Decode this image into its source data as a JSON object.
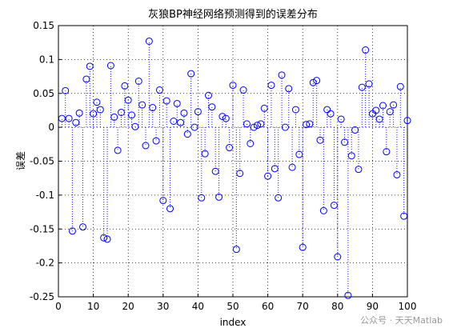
{
  "chart_data": {
    "type": "stem",
    "title": "灰狼BP神经网络预测得到的误差分布",
    "xlabel": "index",
    "ylabel": "误差",
    "watermark": "公众号 · 天天Matlab",
    "x": [
      1,
      2,
      3,
      4,
      5,
      6,
      7,
      8,
      9,
      10,
      11,
      12,
      13,
      14,
      15,
      16,
      17,
      18,
      19,
      20,
      21,
      22,
      23,
      24,
      25,
      26,
      27,
      28,
      29,
      30,
      31,
      32,
      33,
      34,
      35,
      36,
      37,
      38,
      39,
      40,
      41,
      42,
      43,
      44,
      45,
      46,
      47,
      48,
      49,
      50,
      51,
      52,
      53,
      54,
      55,
      56,
      57,
      58,
      59,
      60,
      61,
      62,
      63,
      64,
      65,
      66,
      67,
      68,
      69,
      70,
      71,
      72,
      73,
      74,
      75,
      76,
      77,
      78,
      79,
      80,
      81,
      82,
      83,
      84,
      85,
      86,
      87,
      88,
      89,
      90,
      91,
      92,
      93,
      94,
      95,
      96,
      97,
      98,
      99,
      100
    ],
    "values": [
      0.013,
      0.054,
      0.013,
      -0.153,
      0.007,
      0.021,
      -0.147,
      0.071,
      0.09,
      0.02,
      0.037,
      0.026,
      -0.163,
      -0.165,
      0.091,
      0.015,
      -0.034,
      0.022,
      0.061,
      0.04,
      0.018,
      0.001,
      0.068,
      0.033,
      -0.027,
      0.127,
      0.029,
      -0.02,
      0.055,
      -0.108,
      0.039,
      -0.12,
      0.009,
      0.035,
      0.007,
      0.021,
      -0.01,
      0.079,
      0.0,
      0.023,
      -0.104,
      -0.039,
      0.047,
      0.03,
      -0.065,
      -0.103,
      0.016,
      0.013,
      -0.03,
      0.062,
      -0.18,
      -0.068,
      0.055,
      0.005,
      -0.024,
      0.0,
      0.003,
      0.005,
      0.028,
      -0.072,
      0.062,
      -0.061,
      -0.104,
      0.077,
      0.0,
      0.057,
      -0.059,
      0.026,
      -0.04,
      -0.177,
      0.004,
      0.005,
      0.066,
      0.069,
      -0.019,
      -0.123,
      0.026,
      0.02,
      -0.115,
      -0.191,
      0.012,
      -0.022,
      -0.248,
      -0.042,
      -0.004,
      -0.062,
      0.059,
      0.114,
      0.064,
      0.02,
      0.025,
      0.012,
      0.032,
      -0.036,
      0.023,
      0.033,
      -0.07,
      0.06,
      -0.131,
      0.01
    ],
    "color": "#0000ff",
    "xlim": [
      0,
      100
    ],
    "xticks": [
      0,
      10,
      20,
      30,
      40,
      50,
      60,
      70,
      80,
      90,
      100
    ],
    "ylim": [
      -0.25,
      0.15
    ],
    "yticks": [
      -0.25,
      -0.2,
      -0.15,
      -0.1,
      -0.05,
      0,
      0.05,
      0.1,
      0.15
    ],
    "grid": true
  }
}
